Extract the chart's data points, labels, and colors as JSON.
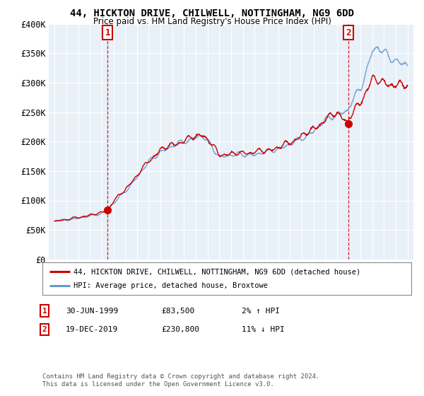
{
  "title": "44, HICKTON DRIVE, CHILWELL, NOTTINGHAM, NG9 6DD",
  "subtitle": "Price paid vs. HM Land Registry's House Price Index (HPI)",
  "legend_line1": "44, HICKTON DRIVE, CHILWELL, NOTTINGHAM, NG9 6DD (detached house)",
  "legend_line2": "HPI: Average price, detached house, Broxtowe",
  "footnote": "Contains HM Land Registry data © Crown copyright and database right 2024.\nThis data is licensed under the Open Government Licence v3.0.",
  "point1_date": "30-JUN-1999",
  "point1_price": "£83,500",
  "point1_hpi": "2% ↑ HPI",
  "point2_date": "19-DEC-2019",
  "point2_price": "£230,800",
  "point2_hpi": "11% ↓ HPI",
  "point1_x": 1999.5,
  "point1_y": 83500,
  "point2_x": 2019.96,
  "point2_y": 230800,
  "line_color_red": "#cc0000",
  "line_color_blue": "#6699cc",
  "marker_color_red": "#cc0000",
  "point_box_color": "#cc0000",
  "ylim": [
    0,
    400000
  ],
  "xlim_left": 1994.5,
  "xlim_right": 2025.5,
  "background_color": "#ffffff",
  "plot_bg_color": "#e8f0f8",
  "grid_color": "#ffffff",
  "yticks": [
    0,
    50000,
    100000,
    150000,
    200000,
    250000,
    300000,
    350000,
    400000
  ],
  "ytick_labels": [
    "£0",
    "£50K",
    "£100K",
    "£150K",
    "£200K",
    "£250K",
    "£300K",
    "£350K",
    "£400K"
  ],
  "xticks": [
    1995,
    1996,
    1997,
    1998,
    1999,
    2000,
    2001,
    2002,
    2003,
    2004,
    2005,
    2006,
    2007,
    2008,
    2009,
    2010,
    2011,
    2012,
    2013,
    2014,
    2015,
    2016,
    2017,
    2018,
    2019,
    2020,
    2021,
    2022,
    2023,
    2024,
    2025
  ]
}
